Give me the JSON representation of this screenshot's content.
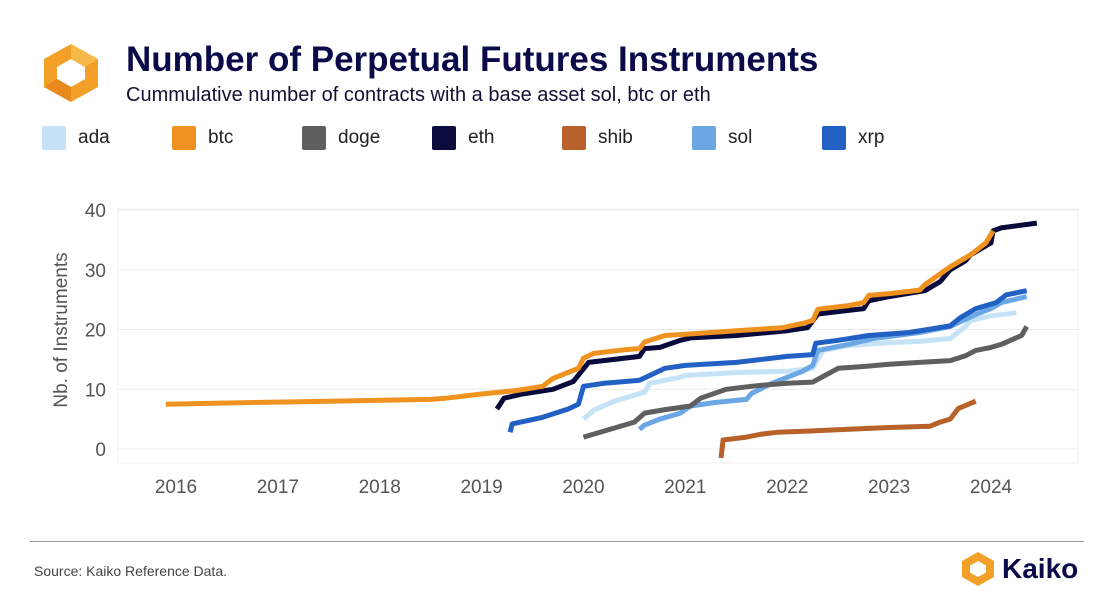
{
  "header": {
    "title": "Number of Perpetual Futures Instruments",
    "subtitle": "Cummulative number of contracts with a base asset sol, btc or eth"
  },
  "footer": {
    "source": "Source: Kaiko Reference Data.",
    "brand": "Kaiko"
  },
  "colors": {
    "title": "#0b0b4a",
    "logo_orange": "#f2a027",
    "grid": "#ececec"
  },
  "chart_data": {
    "type": "line",
    "title": "Number of Perpetual Futures Instruments",
    "subtitle": "Cummulative number of contracts with a base asset sol, btc or eth",
    "xlabel": "",
    "ylabel": "Nb. of Instruments",
    "xlim": [
      2015.5,
      2024.9
    ],
    "ylim": [
      0,
      40
    ],
    "xticks": [
      "2016",
      "2017",
      "2018",
      "2019",
      "2020",
      "2021",
      "2022",
      "2023",
      "2024"
    ],
    "yticks": [
      "0",
      "10",
      "20",
      "30",
      "40"
    ],
    "grid": true,
    "legend_position": "top",
    "series": [
      {
        "name": "ada",
        "color": "#c6e2f7",
        "points": [
          [
            2020.0,
            5
          ],
          [
            2020.1,
            6.5
          ],
          [
            2020.3,
            8
          ],
          [
            2020.6,
            9.5
          ],
          [
            2020.65,
            11
          ],
          [
            2020.95,
            12
          ],
          [
            2021.0,
            12.3
          ],
          [
            2021.5,
            12.8
          ],
          [
            2022.0,
            13
          ],
          [
            2022.25,
            13.5
          ],
          [
            2022.35,
            16.5
          ],
          [
            2022.6,
            17.3
          ],
          [
            2023.0,
            17.8
          ],
          [
            2023.3,
            18
          ],
          [
            2023.6,
            18.5
          ],
          [
            2023.75,
            20.5
          ],
          [
            2023.8,
            21.5
          ],
          [
            2024.0,
            22.3
          ],
          [
            2024.25,
            22.8
          ]
        ]
      },
      {
        "name": "sol",
        "color": "#6ba7e5",
        "points": [
          [
            2020.55,
            3.3
          ],
          [
            2020.6,
            4
          ],
          [
            2020.75,
            5
          ],
          [
            2020.95,
            6
          ],
          [
            2021.05,
            7.2
          ],
          [
            2021.3,
            7.8
          ],
          [
            2021.6,
            8.3
          ],
          [
            2021.65,
            9.3
          ],
          [
            2021.85,
            11
          ],
          [
            2022.15,
            13
          ],
          [
            2022.25,
            14
          ],
          [
            2022.3,
            16.5
          ],
          [
            2022.6,
            17.5
          ],
          [
            2022.85,
            18.5
          ],
          [
            2023.3,
            19.5
          ],
          [
            2023.6,
            20.5
          ],
          [
            2023.85,
            22.5
          ],
          [
            2024.0,
            23.5
          ],
          [
            2024.1,
            24.5
          ],
          [
            2024.35,
            25.5
          ]
        ]
      },
      {
        "name": "xrp",
        "color": "#2360c4",
        "points": [
          [
            2019.28,
            2.8
          ],
          [
            2019.3,
            4.2
          ],
          [
            2019.6,
            5.3
          ],
          [
            2019.85,
            6.7
          ],
          [
            2019.95,
            7.5
          ],
          [
            2020.0,
            10.5
          ],
          [
            2020.2,
            11
          ],
          [
            2020.55,
            11.5
          ],
          [
            2020.8,
            13.5
          ],
          [
            2021.0,
            14
          ],
          [
            2021.5,
            14.5
          ],
          [
            2022.0,
            15.5
          ],
          [
            2022.25,
            15.8
          ],
          [
            2022.28,
            17.7
          ],
          [
            2022.5,
            18.2
          ],
          [
            2022.8,
            19
          ],
          [
            2023.2,
            19.5
          ],
          [
            2023.6,
            20.6
          ],
          [
            2023.7,
            22
          ],
          [
            2023.85,
            23.5
          ],
          [
            2024.05,
            24.5
          ],
          [
            2024.15,
            25.8
          ],
          [
            2024.35,
            26.5
          ]
        ]
      },
      {
        "name": "doge",
        "color": "#5f5f5f",
        "points": [
          [
            2020.0,
            2
          ],
          [
            2020.2,
            3
          ],
          [
            2020.5,
            4.5
          ],
          [
            2020.6,
            6
          ],
          [
            2020.8,
            6.6
          ],
          [
            2021.05,
            7.2
          ],
          [
            2021.15,
            8.5
          ],
          [
            2021.4,
            10
          ],
          [
            2021.7,
            10.6
          ],
          [
            2022.0,
            11
          ],
          [
            2022.25,
            11.2
          ],
          [
            2022.5,
            13.5
          ],
          [
            2022.75,
            13.8
          ],
          [
            2023.0,
            14.2
          ],
          [
            2023.3,
            14.5
          ],
          [
            2023.6,
            14.8
          ],
          [
            2023.75,
            15.6
          ],
          [
            2023.85,
            16.5
          ],
          [
            2024.0,
            17
          ],
          [
            2024.1,
            17.5
          ],
          [
            2024.3,
            19
          ],
          [
            2024.35,
            20.5
          ]
        ]
      },
      {
        "name": "eth",
        "color": "#0a0a3c",
        "points": [
          [
            2019.15,
            6.7
          ],
          [
            2019.22,
            8.5
          ],
          [
            2019.4,
            9.2
          ],
          [
            2019.7,
            10
          ],
          [
            2019.9,
            11.3
          ],
          [
            2019.98,
            13
          ],
          [
            2020.05,
            14.5
          ],
          [
            2020.55,
            15.5
          ],
          [
            2020.6,
            16.8
          ],
          [
            2020.75,
            17
          ],
          [
            2020.95,
            18.2
          ],
          [
            2021.05,
            18.6
          ],
          [
            2021.5,
            19
          ],
          [
            2022.0,
            19.8
          ],
          [
            2022.2,
            20.3
          ],
          [
            2022.3,
            22.6
          ],
          [
            2022.6,
            23.2
          ],
          [
            2022.75,
            23.5
          ],
          [
            2022.8,
            24.8
          ],
          [
            2023.0,
            25.5
          ],
          [
            2023.35,
            26.5
          ],
          [
            2023.5,
            28
          ],
          [
            2023.6,
            30
          ],
          [
            2023.75,
            31.5
          ],
          [
            2023.8,
            32.5
          ],
          [
            2024.0,
            34.5
          ],
          [
            2024.02,
            36.5
          ],
          [
            2024.1,
            37
          ],
          [
            2024.45,
            37.8
          ]
        ]
      },
      {
        "name": "btc",
        "color": "#f0921f",
        "points": [
          [
            2015.9,
            7.5
          ],
          [
            2016.5,
            7.7
          ],
          [
            2017.5,
            8
          ],
          [
            2018.5,
            8.3
          ],
          [
            2018.65,
            8.5
          ],
          [
            2019.0,
            9.2
          ],
          [
            2019.35,
            9.8
          ],
          [
            2019.6,
            10.5
          ],
          [
            2019.7,
            11.8
          ],
          [
            2019.95,
            13.5
          ],
          [
            2020.0,
            15.2
          ],
          [
            2020.1,
            16
          ],
          [
            2020.4,
            16.6
          ],
          [
            2020.55,
            16.8
          ],
          [
            2020.6,
            17.9
          ],
          [
            2020.8,
            19
          ],
          [
            2021.0,
            19.2
          ],
          [
            2021.5,
            19.8
          ],
          [
            2021.95,
            20.3
          ],
          [
            2022.15,
            21
          ],
          [
            2022.25,
            21.5
          ],
          [
            2022.3,
            23.4
          ],
          [
            2022.6,
            24
          ],
          [
            2022.75,
            24.5
          ],
          [
            2022.8,
            25.7
          ],
          [
            2023.0,
            26
          ],
          [
            2023.3,
            26.6
          ],
          [
            2023.35,
            27.5
          ],
          [
            2023.6,
            30.5
          ],
          [
            2023.7,
            31.5
          ],
          [
            2023.8,
            32.5
          ],
          [
            2023.95,
            34.5
          ],
          [
            2024.02,
            36.5
          ]
        ]
      },
      {
        "name": "shib",
        "color": "#b8612a",
        "points": [
          [
            2021.35,
            -1.5
          ],
          [
            2021.37,
            1.5
          ],
          [
            2021.6,
            2
          ],
          [
            2021.75,
            2.5
          ],
          [
            2021.9,
            2.8
          ],
          [
            2022.2,
            3
          ],
          [
            2022.6,
            3.3
          ],
          [
            2023.0,
            3.6
          ],
          [
            2023.4,
            3.8
          ],
          [
            2023.5,
            4.5
          ],
          [
            2023.6,
            5
          ],
          [
            2023.68,
            6.8
          ],
          [
            2023.85,
            8
          ]
        ]
      }
    ]
  }
}
